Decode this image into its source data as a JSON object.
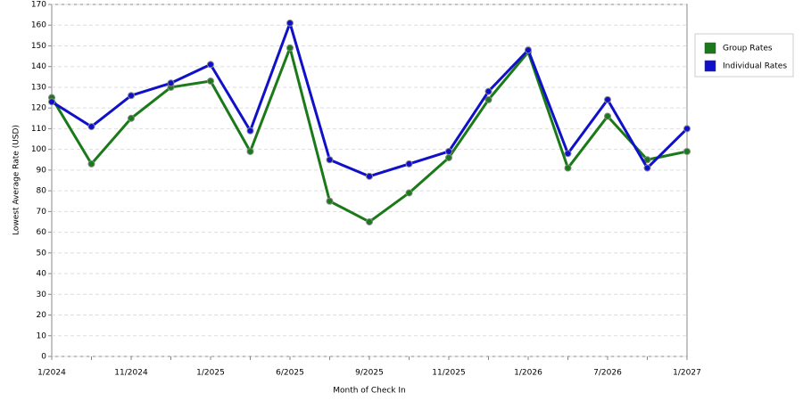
{
  "chart_data": {
    "type": "line",
    "x_label": "Month of Check In",
    "y_label": "Lowest Average Rate (USD)",
    "categories": [
      "1/2024",
      null,
      "11/2024",
      null,
      "1/2025",
      null,
      "6/2025",
      null,
      "9/2025",
      null,
      "11/2025",
      null,
      "1/2026",
      null,
      "7/2026",
      null,
      "1/2027"
    ],
    "series": [
      {
        "name": "Group Rates",
        "color": "#1a7a1a",
        "values": [
          125,
          93,
          115,
          130,
          133,
          99,
          149,
          75,
          65,
          79,
          96,
          124,
          147,
          91,
          116,
          95,
          99
        ]
      },
      {
        "name": "Individual Rates",
        "color": "#1010c8",
        "values": [
          123,
          111,
          126,
          132,
          141,
          109,
          161,
          95,
          87,
          93,
          99,
          128,
          148,
          98,
          124,
          91,
          110
        ]
      }
    ],
    "ylim": [
      0,
      170
    ],
    "yticks": [
      0,
      10,
      20,
      30,
      40,
      50,
      60,
      70,
      80,
      90,
      100,
      110,
      120,
      130,
      140,
      150,
      160,
      170
    ],
    "grid": true,
    "legend": "right"
  }
}
